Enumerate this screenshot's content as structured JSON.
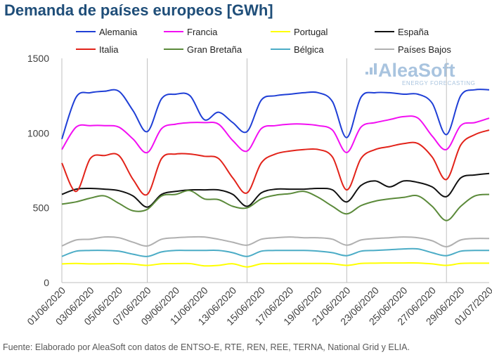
{
  "title": "Demanda de países europeos [GWh]",
  "source": "Fuente: Elaborado por AleaSoft con datos de ENTSO-E, RTE, REN, REE, TERNA, National Grid y ELIA.",
  "logo": {
    "name": "AleaSoft",
    "tagline": "ENERGY FORECASTING"
  },
  "chart_data": {
    "type": "line",
    "title": "Demanda de países europeos [GWh]",
    "xlabel": "",
    "ylabel": "",
    "ylim": [
      0,
      1500
    ],
    "y_ticks": [
      0,
      500,
      1000,
      1500
    ],
    "grid": "vertical gridlines on every Sunday",
    "legend_position": "top",
    "x": [
      "01/06/2020",
      "02/06/2020",
      "03/06/2020",
      "04/06/2020",
      "05/06/2020",
      "06/06/2020",
      "07/06/2020",
      "08/06/2020",
      "09/06/2020",
      "10/06/2020",
      "11/06/2020",
      "12/06/2020",
      "13/06/2020",
      "14/06/2020",
      "15/06/2020",
      "16/06/2020",
      "17/06/2020",
      "18/06/2020",
      "19/06/2020",
      "20/06/2020",
      "21/06/2020",
      "22/06/2020",
      "23/06/2020",
      "24/06/2020",
      "25/06/2020",
      "26/06/2020",
      "27/06/2020",
      "28/06/2020",
      "29/06/2020",
      "30/06/2020",
      "01/07/2020"
    ],
    "x_tick_labels": [
      "01/06/2020",
      "03/06/2020",
      "05/06/2020",
      "07/06/2020",
      "09/06/2020",
      "11/06/2020",
      "13/06/2020",
      "15/06/2020",
      "17/06/2020",
      "19/06/2020",
      "21/06/2020",
      "23/06/2020",
      "25/06/2020",
      "27/06/2020",
      "29/06/2020",
      "01/07/2020"
    ],
    "gridline_dates": [
      "01/06/2020",
      "07/06/2020",
      "14/06/2020",
      "21/06/2020",
      "28/06/2020"
    ],
    "series": [
      {
        "name": "Alemania",
        "color": "#1f3fd6",
        "values": [
          960,
          1240,
          1270,
          1280,
          1280,
          1150,
          1010,
          1230,
          1260,
          1250,
          1090,
          1140,
          1070,
          1010,
          1220,
          1250,
          1260,
          1270,
          1270,
          1210,
          970,
          1240,
          1270,
          1270,
          1260,
          1260,
          1200,
          990,
          1250,
          1290,
          1290
        ]
      },
      {
        "name": "Francia",
        "color": "#f20ff2",
        "values": [
          890,
          1040,
          1050,
          1050,
          1040,
          960,
          870,
          1030,
          1060,
          1070,
          1070,
          1060,
          950,
          880,
          1030,
          1050,
          1060,
          1060,
          1050,
          1020,
          870,
          1040,
          1070,
          1090,
          1110,
          1100,
          980,
          890,
          1050,
          1070,
          1100
        ]
      },
      {
        "name": "Portugal",
        "color": "#ffff00",
        "values": [
          125,
          128,
          125,
          126,
          127,
          124,
          115,
          126,
          127,
          127,
          112,
          115,
          126,
          105,
          126,
          127,
          128,
          128,
          128,
          126,
          115,
          128,
          130,
          131,
          131,
          131,
          125,
          115,
          128,
          130,
          130
        ]
      },
      {
        "name": "España",
        "color": "#111111",
        "values": [
          590,
          625,
          630,
          625,
          615,
          580,
          505,
          590,
          610,
          620,
          620,
          620,
          590,
          510,
          600,
          625,
          625,
          625,
          630,
          620,
          540,
          650,
          680,
          640,
          680,
          670,
          640,
          575,
          700,
          720,
          730
        ]
      },
      {
        "name": "Italia",
        "color": "#e2231a",
        "values": [
          800,
          610,
          830,
          850,
          850,
          690,
          590,
          830,
          860,
          860,
          845,
          830,
          700,
          600,
          800,
          860,
          880,
          890,
          890,
          840,
          620,
          830,
          890,
          910,
          930,
          930,
          840,
          690,
          920,
          990,
          1020
        ]
      },
      {
        "name": "Gran Bretaña",
        "color": "#5b8a3a",
        "values": [
          525,
          540,
          565,
          580,
          530,
          480,
          490,
          580,
          590,
          615,
          560,
          555,
          510,
          500,
          560,
          585,
          595,
          610,
          570,
          510,
          460,
          515,
          545,
          560,
          570,
          580,
          510,
          415,
          510,
          580,
          590
        ]
      },
      {
        "name": "Bélgica",
        "color": "#4bacc6",
        "values": [
          175,
          210,
          215,
          215,
          210,
          190,
          175,
          205,
          215,
          215,
          215,
          215,
          200,
          175,
          210,
          215,
          215,
          215,
          210,
          200,
          180,
          210,
          215,
          220,
          225,
          225,
          200,
          180,
          210,
          215,
          215
        ]
      },
      {
        "name": "Países Bajos",
        "color": "#b0b0b0",
        "values": [
          245,
          285,
          290,
          305,
          300,
          270,
          245,
          290,
          300,
          305,
          305,
          290,
          270,
          250,
          290,
          300,
          305,
          300,
          300,
          290,
          250,
          285,
          295,
          300,
          305,
          300,
          280,
          240,
          285,
          295,
          295
        ]
      }
    ]
  }
}
